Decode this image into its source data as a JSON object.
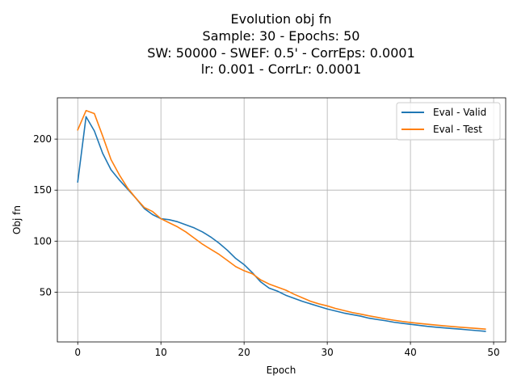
{
  "chart_data": {
    "type": "line",
    "title_lines": [
      "Evolution obj fn",
      "Sample: 30 - Epochs: 50",
      "SW: 50000 - SWEF: 0.5' - CorrEps: 0.0001",
      "lr: 0.001 - CorrLr: 0.0001"
    ],
    "xlabel": "Epoch",
    "ylabel": "Obj fn",
    "xlim": [
      -2.45,
      51.45
    ],
    "ylim": [
      1.2,
      240.5
    ],
    "xticks": [
      0,
      10,
      20,
      30,
      40,
      50
    ],
    "yticks": [
      50,
      100,
      150,
      200
    ],
    "grid": true,
    "legend_position": "top-right",
    "x": [
      0,
      1,
      2,
      3,
      4,
      5,
      6,
      7,
      8,
      9,
      10,
      11,
      12,
      13,
      14,
      15,
      16,
      17,
      18,
      19,
      20,
      21,
      22,
      23,
      24,
      25,
      26,
      27,
      28,
      29,
      30,
      31,
      32,
      33,
      34,
      35,
      36,
      37,
      38,
      39,
      40,
      41,
      42,
      43,
      44,
      45,
      46,
      47,
      48,
      49
    ],
    "series": [
      {
        "name": "Eval - Valid",
        "color": "#1f77b4",
        "values": [
          158,
          222,
          208,
          186,
          170,
          160,
          151,
          142,
          132,
          126,
          122,
          121,
          119,
          116,
          113,
          109,
          104,
          98,
          91,
          83,
          77,
          69,
          60,
          54,
          51,
          47,
          44,
          41,
          38.5,
          36,
          33.5,
          31.5,
          29.5,
          28,
          26.5,
          24.5,
          23.2,
          22,
          20.5,
          19.5,
          18.5,
          17.5,
          16.5,
          15.7,
          15,
          14.3,
          13.7,
          13,
          12.3,
          11.6
        ]
      },
      {
        "name": "Eval - Test",
        "color": "#ff7f0e",
        "values": [
          209,
          228,
          225,
          203,
          180,
          165,
          152,
          142,
          133,
          129,
          122,
          118,
          114,
          109,
          103,
          97,
          92,
          87,
          81,
          75,
          71,
          68,
          62,
          58,
          55,
          52,
          48,
          44.5,
          41,
          38.5,
          36.5,
          34,
          32,
          30,
          28.5,
          26.8,
          25.3,
          23.8,
          22.5,
          21.3,
          20.3,
          19.4,
          18.6,
          17.8,
          17,
          16.3,
          15.6,
          15,
          14.4,
          13.8
        ]
      }
    ]
  }
}
